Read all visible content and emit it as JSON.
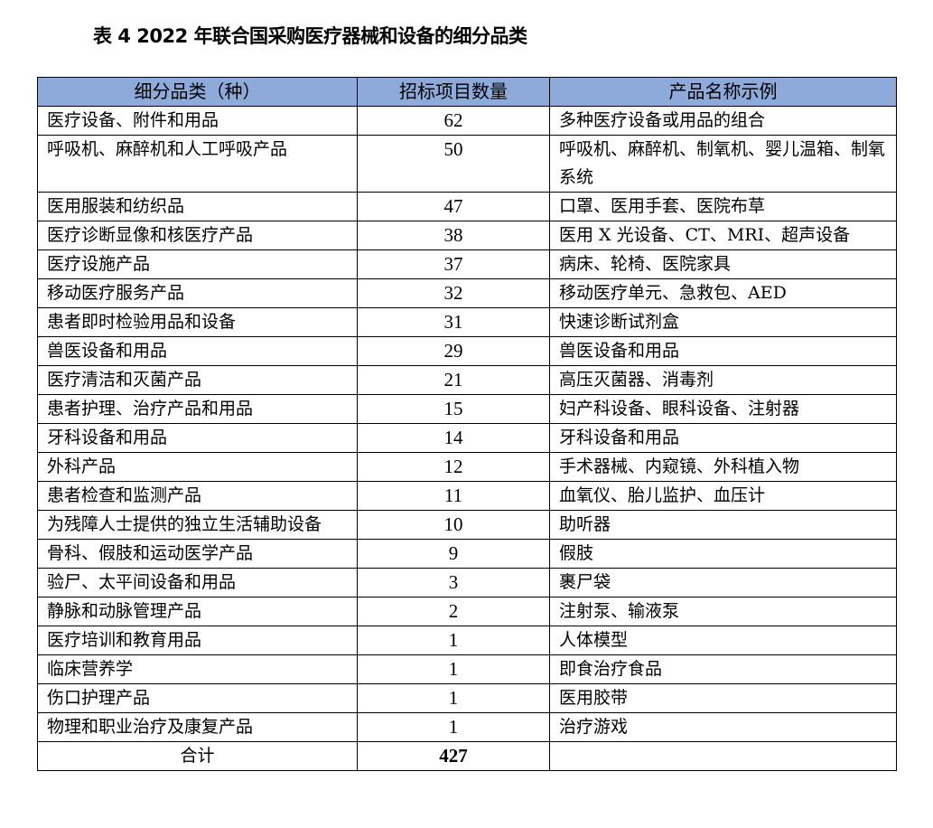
{
  "title": "表 4 2022 年联合国采购医疗器械和设备的细分品类",
  "table": {
    "headers": [
      "细分品类（种）",
      "招标项目数量",
      "产品名称示例"
    ],
    "header_color": "#8EAADB",
    "rows": [
      {
        "category": "医疗设备、附件和用品",
        "count": "62",
        "examples": "多种医疗设备或用品的组合"
      },
      {
        "category": "呼吸机、麻醉机和人工呼吸产品",
        "count": "50",
        "examples": "呼吸机、麻醉机、制氧机、婴儿温箱、制氧系统"
      },
      {
        "category": "医用服装和纺织品",
        "count": "47",
        "examples": "口罩、医用手套、医院布草"
      },
      {
        "category": "医疗诊断显像和核医疗产品",
        "count": "38",
        "examples": "医用 X 光设备、CT、MRI、超声设备"
      },
      {
        "category": "医疗设施产品",
        "count": "37",
        "examples": "病床、轮椅、医院家具"
      },
      {
        "category": "移动医疗服务产品",
        "count": "32",
        "examples": "移动医疗单元、急救包、AED"
      },
      {
        "category": "患者即时检验用品和设备",
        "count": "31",
        "examples": "快速诊断试剂盒"
      },
      {
        "category": "兽医设备和用品",
        "count": "29",
        "examples": "兽医设备和用品"
      },
      {
        "category": "医疗清洁和灭菌产品",
        "count": "21",
        "examples": "高压灭菌器、消毒剂"
      },
      {
        "category": "患者护理、治疗产品和用品",
        "count": "15",
        "examples": "妇产科设备、眼科设备、注射器"
      },
      {
        "category": "牙科设备和用品",
        "count": "14",
        "examples": "牙科设备和用品"
      },
      {
        "category": "外科产品",
        "count": "12",
        "examples": "手术器械、内窥镜、外科植入物"
      },
      {
        "category": "患者检查和监测产品",
        "count": "11",
        "examples": "血氧仪、胎儿监护、血压计"
      },
      {
        "category": "为残障人士提供的独立生活辅助设备",
        "count": "10",
        "examples": "助听器"
      },
      {
        "category": "骨科、假肢和运动医学产品",
        "count": "9",
        "examples": "假肢"
      },
      {
        "category": "验尸、太平间设备和用品",
        "count": "3",
        "examples": "裹尸袋"
      },
      {
        "category": "静脉和动脉管理产品",
        "count": "2",
        "examples": "注射泵、输液泵"
      },
      {
        "category": "医疗培训和教育用品",
        "count": "1",
        "examples": "人体模型"
      },
      {
        "category": "临床营养学",
        "count": "1",
        "examples": "即食治疗食品"
      },
      {
        "category": "伤口护理产品",
        "count": "1",
        "examples": "医用胶带"
      },
      {
        "category": "物理和职业治疗及康复产品",
        "count": "1",
        "examples": "治疗游戏"
      }
    ],
    "total_label": "合计",
    "total_count": "427"
  }
}
